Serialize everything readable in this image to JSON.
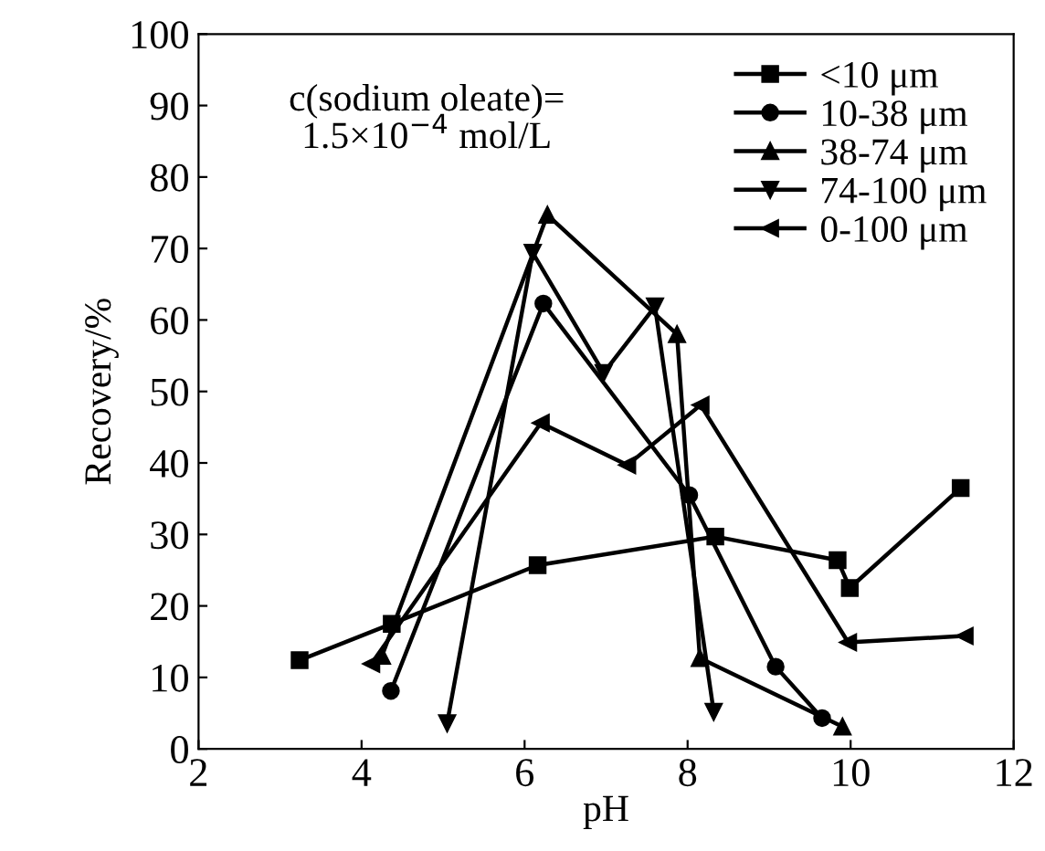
{
  "chart_data": {
    "type": "line",
    "xlabel": "pH",
    "ylabel": "Recovery/%",
    "annotations": [
      "c(sodium oleate)=\n1.5×10$^{−4}$ mol/L"
    ],
    "xlim": [
      2,
      12
    ],
    "xticks": [
      2,
      4,
      6,
      8,
      10,
      12
    ],
    "ylim": [
      0,
      100
    ],
    "yticks": [
      0,
      10,
      20,
      30,
      40,
      50,
      60,
      70,
      80,
      90,
      100
    ],
    "legend": "top right",
    "grid": false,
    "line_style": "solid",
    "series": [
      {
        "name": "<10 μm",
        "color": "#000000",
        "marker": "square",
        "x": [
          3.24,
          4.37,
          6.16,
          8.34,
          9.84,
          9.99,
          11.35
        ],
        "values": [
          12.4,
          17.5,
          25.7,
          29.7,
          26.4,
          22.5,
          36.5
        ]
      },
      {
        "name": "10-38 μm",
        "color": "#000000",
        "marker": "circle",
        "x": [
          4.36,
          6.23,
          8.02,
          9.08,
          9.65
        ],
        "values": [
          8.1,
          62.3,
          35.5,
          11.5,
          4.3
        ]
      },
      {
        "name": "38-74 μm",
        "color": "#000000",
        "marker": "triangle",
        "x": [
          4.25,
          6.28,
          7.87,
          8.15,
          9.9
        ],
        "values": [
          13.0,
          74.7,
          58.0,
          12.7,
          3.1
        ]
      },
      {
        "name": "74-100 μm",
        "color": "#000000",
        "marker": "triangle_down",
        "x": [
          5.05,
          6.1,
          6.97,
          7.6,
          8.32
        ],
        "values": [
          3.6,
          69.4,
          52.6,
          61.9,
          5.2
        ]
      },
      {
        "name": "0-100 μm",
        "color": "#000000",
        "marker": "triangle_left",
        "x": [
          4.12,
          6.2,
          7.26,
          8.16,
          9.97,
          11.4
        ],
        "values": [
          11.9,
          45.6,
          39.7,
          48.1,
          14.9,
          15.8
        ]
      }
    ]
  }
}
